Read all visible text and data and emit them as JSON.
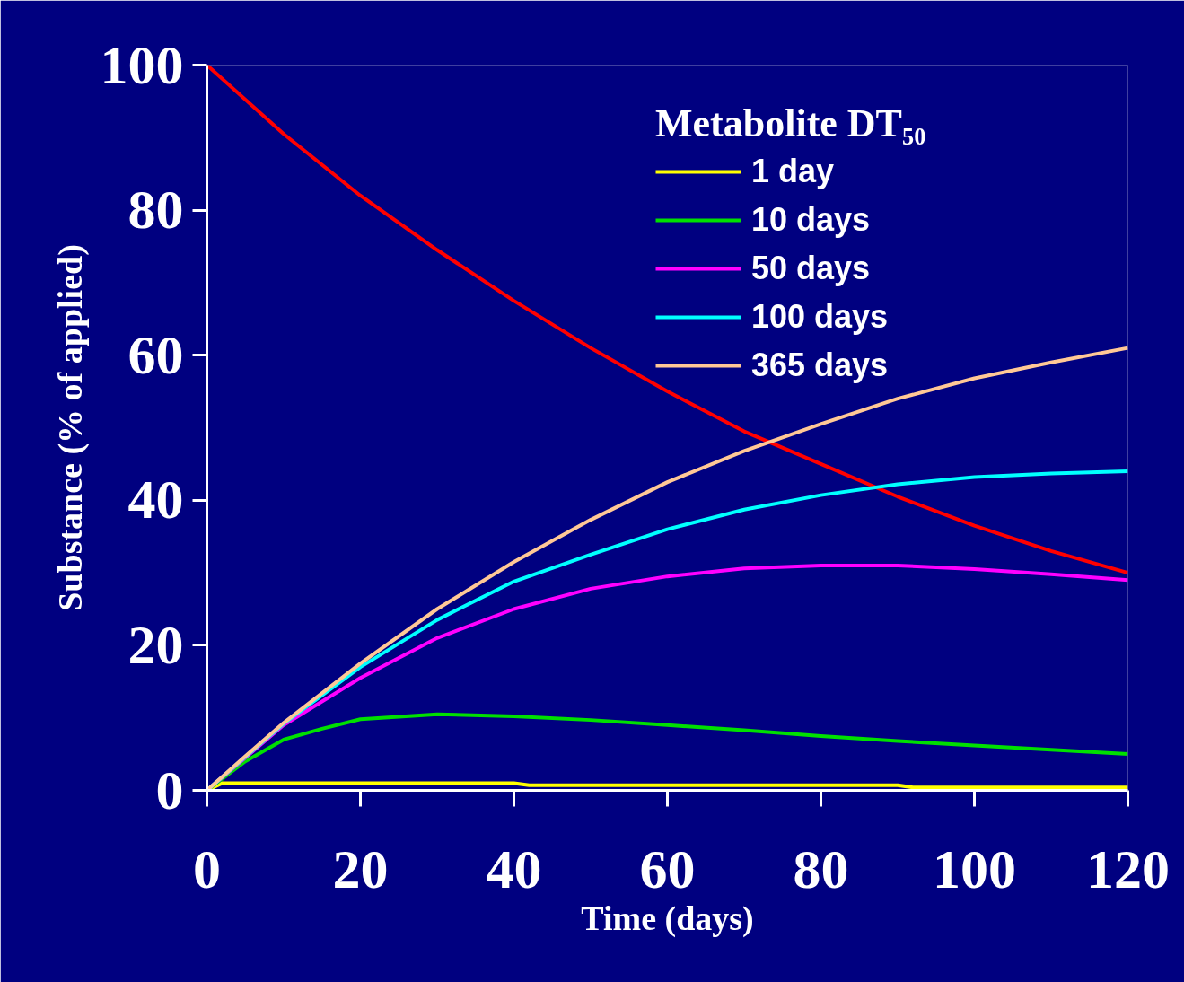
{
  "chart_data": {
    "type": "line",
    "xlabel": "Time (days)",
    "ylabel": "Substance (% of applied)",
    "legend_title": "Metabolite DT₅₀",
    "xlim": [
      0,
      120
    ],
    "ylim": [
      0,
      100
    ],
    "xticks": [
      0,
      20,
      40,
      60,
      80,
      100,
      120
    ],
    "yticks": [
      0,
      20,
      40,
      60,
      80,
      100
    ],
    "grid": false,
    "legend": "top right",
    "marker": "none",
    "line_style": "solid",
    "series": [
      {
        "color": "#ff0000",
        "x": [
          0,
          10,
          20,
          30,
          40,
          50,
          60,
          70,
          80,
          90,
          100,
          110,
          120
        ],
        "values": [
          100,
          90.5,
          82,
          74.5,
          67.5,
          61,
          55,
          49.5,
          45,
          40.5,
          36.5,
          33,
          30
        ]
      },
      {
        "name": "1 day",
        "color": "#ffff00",
        "x": [
          0,
          2,
          40,
          42,
          90,
          92,
          120
        ],
        "values": [
          0,
          1,
          1,
          0.7,
          0.7,
          0.4,
          0.4
        ]
      },
      {
        "name": "10 days",
        "color": "#00e000",
        "x": [
          0,
          5,
          10,
          15,
          20,
          30,
          40,
          50,
          60,
          70,
          80,
          90,
          100,
          110,
          120
        ],
        "values": [
          0,
          4,
          7,
          8.5,
          9.8,
          10.5,
          10.2,
          9.7,
          9,
          8.3,
          7.5,
          6.8,
          6.2,
          5.6,
          5
        ]
      },
      {
        "name": "50 days",
        "color": "#ff00ff",
        "x": [
          0,
          5,
          10,
          20,
          30,
          40,
          50,
          60,
          70,
          80,
          90,
          100,
          110,
          120
        ],
        "values": [
          0,
          4.5,
          9,
          15.5,
          21,
          25,
          27.8,
          29.5,
          30.6,
          31,
          31,
          30.5,
          29.8,
          29
        ]
      },
      {
        "name": "100 days",
        "color": "#00ffff",
        "x": [
          0,
          5,
          10,
          20,
          30,
          40,
          50,
          60,
          70,
          80,
          90,
          100,
          110,
          120
        ],
        "values": [
          0,
          4.6,
          9.2,
          17,
          23.5,
          28.8,
          32.5,
          36,
          38.7,
          40.7,
          42.2,
          43.2,
          43.7,
          44
        ]
      },
      {
        "name": "365 days",
        "color": "#ffc896",
        "x": [
          0,
          5,
          10,
          20,
          30,
          40,
          50,
          60,
          70,
          80,
          90,
          100,
          110,
          120
        ],
        "values": [
          0,
          4.7,
          9.3,
          17.5,
          25,
          31.5,
          37.3,
          42.5,
          46.8,
          50.5,
          54,
          56.8,
          59,
          61
        ]
      }
    ]
  }
}
